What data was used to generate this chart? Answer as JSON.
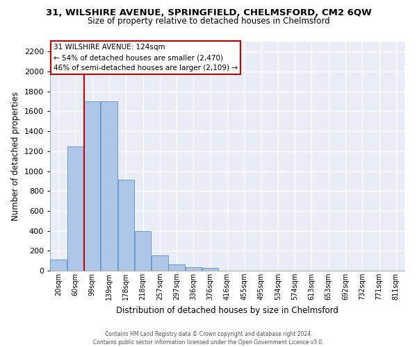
{
  "title": "31, WILSHIRE AVENUE, SPRINGFIELD, CHELMSFORD, CM2 6QW",
  "subtitle": "Size of property relative to detached houses in Chelmsford",
  "xlabel": "Distribution of detached houses by size in Chelmsford",
  "ylabel": "Number of detached properties",
  "bar_color": "#aec6e8",
  "bar_edge_color": "#5b8fc9",
  "background_color": "#e8eef8",
  "grid_color": "#ffffff",
  "categories": [
    "20sqm",
    "60sqm",
    "99sqm",
    "139sqm",
    "178sqm",
    "218sqm",
    "257sqm",
    "297sqm",
    "336sqm",
    "376sqm",
    "416sqm",
    "455sqm",
    "495sqm",
    "534sqm",
    "574sqm",
    "613sqm",
    "653sqm",
    "692sqm",
    "732sqm",
    "771sqm",
    "811sqm"
  ],
  "values": [
    110,
    1250,
    1700,
    1700,
    910,
    400,
    150,
    65,
    35,
    25,
    0,
    0,
    0,
    0,
    0,
    0,
    0,
    0,
    0,
    0,
    0
  ],
  "ylim": [
    0,
    2300
  ],
  "yticks": [
    0,
    200,
    400,
    600,
    800,
    1000,
    1200,
    1400,
    1600,
    1800,
    2000,
    2200
  ],
  "annotation_text": "31 WILSHIRE AVENUE: 124sqm\n← 54% of detached houses are smaller (2,470)\n46% of semi-detached houses are larger (2,109) →",
  "vline_index": 2,
  "vline_color": "#cc0000",
  "annotation_box_edgecolor": "#cc0000",
  "footer_line1": "Contains HM Land Registry data © Crown copyright and database right 2024.",
  "footer_line2": "Contains public sector information licensed under the Open Government Licence v3.0."
}
